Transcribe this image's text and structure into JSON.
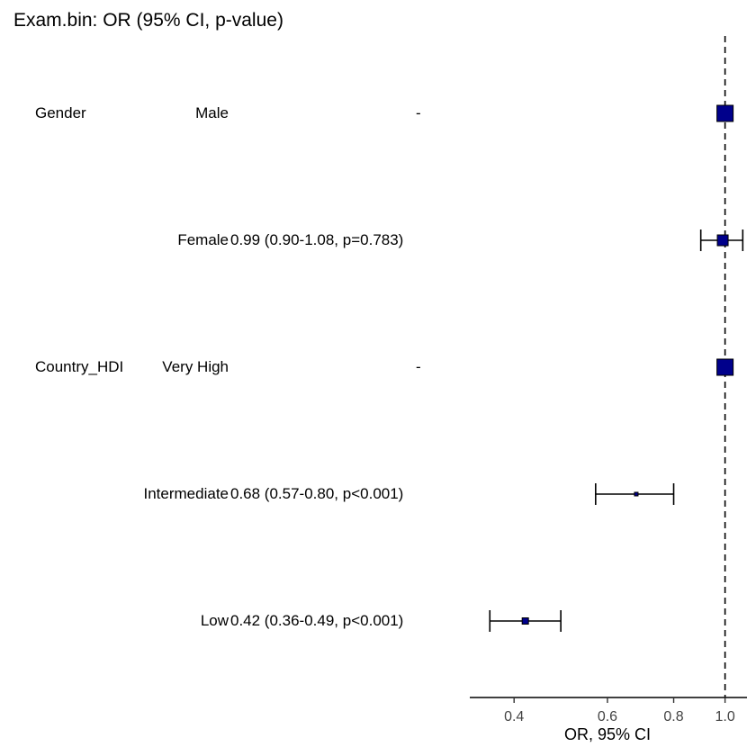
{
  "title": "Exam.bin: OR (95% CI, p-value)",
  "colors": {
    "box_fill": "#00008B",
    "line": "#000000"
  },
  "chart_data": {
    "type": "forest",
    "title": "Exam.bin: OR (95% CI, p-value)",
    "xlabel": "OR, 95% CI",
    "x_scale": "log",
    "xlim": [
      0.33,
      1.1
    ],
    "xticks": [
      "0.4",
      "0.6",
      "0.8",
      "1.0"
    ],
    "xtick_values": [
      0.4,
      0.6,
      0.8,
      1.0
    ],
    "reference_line": 1.0,
    "rows": [
      {
        "variable": "Gender",
        "level": "Male",
        "result": "-",
        "or": 1.0,
        "lower": null,
        "upper": null,
        "reference": true
      },
      {
        "variable": "",
        "level": "Female",
        "result": "0.99 (0.90-1.08, p=0.783)",
        "or": 0.99,
        "lower": 0.9,
        "upper": 1.08,
        "reference": false
      },
      {
        "variable": "Country_HDI",
        "level": "Very High",
        "result": "-",
        "or": 1.0,
        "lower": null,
        "upper": null,
        "reference": true
      },
      {
        "variable": "",
        "level": "Intermediate",
        "result": "0.68 (0.57-0.80, p<0.001)",
        "or": 0.68,
        "lower": 0.57,
        "upper": 0.8,
        "reference": false
      },
      {
        "variable": "",
        "level": "Low",
        "result": "0.42 (0.36-0.49, p<0.001)",
        "or": 0.42,
        "lower": 0.36,
        "upper": 0.49,
        "reference": false
      }
    ]
  }
}
